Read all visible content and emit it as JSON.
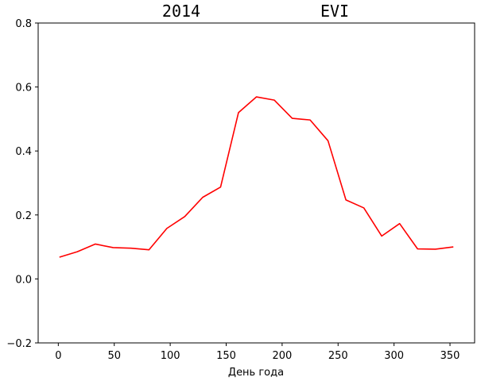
{
  "chart_data": {
    "type": "line",
    "title": "2014 EVI",
    "title_parts": [
      "2014",
      "EVI"
    ],
    "xlabel": "День года",
    "ylabel": "",
    "xlim": [
      -18,
      372
    ],
    "ylim": [
      -0.2,
      0.8
    ],
    "x_ticks": [
      0,
      50,
      100,
      150,
      200,
      250,
      300,
      350
    ],
    "y_ticks": [
      -0.2,
      0.0,
      0.2,
      0.4,
      0.6,
      0.8
    ],
    "grid": false,
    "series": [
      {
        "color": "#ff0000",
        "x": [
          1,
          17,
          33,
          49,
          65,
          81,
          97,
          113,
          129,
          145,
          161,
          177,
          193,
          209,
          225,
          241,
          257,
          273,
          289,
          305,
          321,
          337,
          353
        ],
        "y": [
          0.068,
          0.085,
          0.109,
          0.098,
          0.096,
          0.091,
          0.158,
          0.195,
          0.255,
          0.287,
          0.52,
          0.569,
          0.559,
          0.502,
          0.497,
          0.432,
          0.247,
          0.222,
          0.134,
          0.173,
          0.094,
          0.093,
          0.1
        ]
      }
    ]
  }
}
